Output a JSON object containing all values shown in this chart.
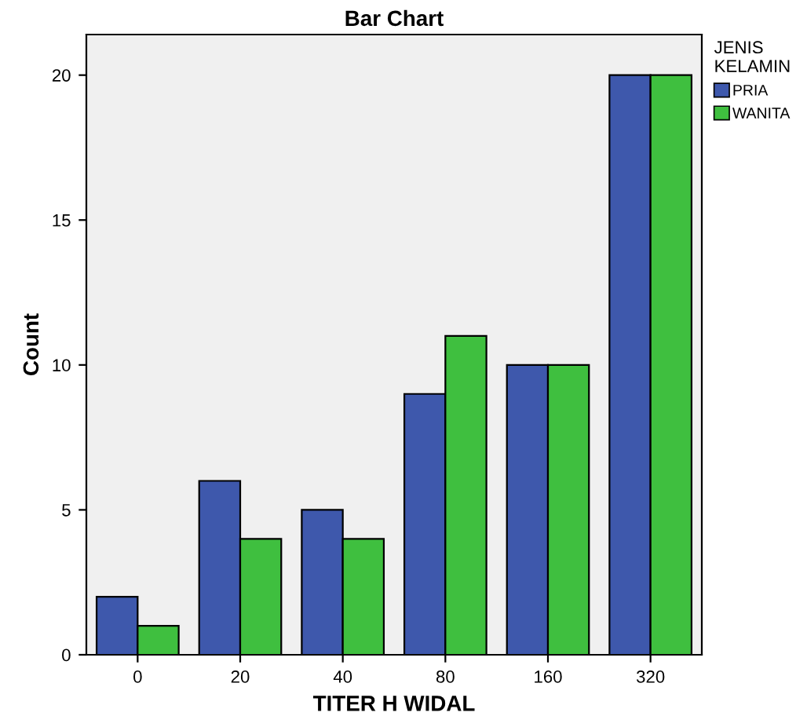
{
  "chart_data": {
    "type": "bar",
    "title": "Bar Chart",
    "xlabel": "TITER H WIDAL",
    "ylabel": "Count",
    "legend_title": "JENIS\nKELAMIN",
    "categories": [
      "0",
      "20",
      "40",
      "80",
      "160",
      "320"
    ],
    "series": [
      {
        "name": "PRIA",
        "color": "#3e58ac",
        "values": [
          2,
          6,
          5,
          9,
          10,
          20
        ]
      },
      {
        "name": "WANITA",
        "color": "#3fbf3f",
        "values": [
          1,
          4,
          4,
          11,
          10,
          20
        ]
      }
    ],
    "ylim": [
      0,
      21.4
    ],
    "yticks": [
      0,
      5,
      10,
      15,
      20
    ],
    "grid": false,
    "legend": "top right"
  }
}
